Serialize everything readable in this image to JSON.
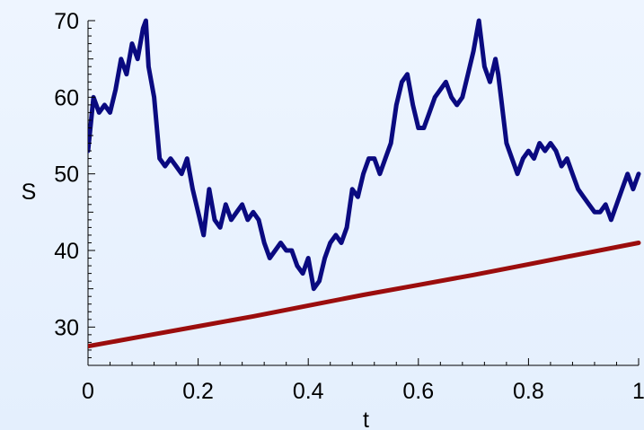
{
  "chart_data": {
    "type": "line",
    "title": "",
    "xlabel": "t",
    "ylabel": "S",
    "xlim": [
      0,
      1
    ],
    "ylim": [
      25,
      70
    ],
    "x_ticks": [
      0,
      0.2,
      0.4,
      0.6,
      0.8,
      1
    ],
    "x_tick_labels": [
      "0",
      "0.2",
      "0.4",
      "0.6",
      "0.8",
      "1"
    ],
    "y_ticks": [
      30,
      40,
      50,
      60,
      70
    ],
    "y_tick_labels": [
      "30",
      "40",
      "50",
      "60",
      "70"
    ],
    "grid": false,
    "legend": "none",
    "series": [
      {
        "color": "#0a0a80",
        "x": [
          0.0,
          0.01,
          0.02,
          0.03,
          0.04,
          0.05,
          0.06,
          0.07,
          0.08,
          0.09,
          0.1,
          0.105,
          0.11,
          0.12,
          0.13,
          0.14,
          0.15,
          0.16,
          0.17,
          0.18,
          0.19,
          0.2,
          0.21,
          0.22,
          0.23,
          0.24,
          0.25,
          0.26,
          0.27,
          0.28,
          0.29,
          0.3,
          0.31,
          0.32,
          0.33,
          0.34,
          0.35,
          0.36,
          0.37,
          0.38,
          0.39,
          0.4,
          0.41,
          0.42,
          0.43,
          0.44,
          0.45,
          0.46,
          0.47,
          0.48,
          0.49,
          0.5,
          0.51,
          0.52,
          0.53,
          0.54,
          0.55,
          0.56,
          0.57,
          0.58,
          0.59,
          0.6,
          0.61,
          0.62,
          0.63,
          0.64,
          0.65,
          0.66,
          0.67,
          0.68,
          0.69,
          0.7,
          0.71,
          0.72,
          0.73,
          0.74,
          0.745,
          0.75,
          0.76,
          0.77,
          0.78,
          0.79,
          0.8,
          0.81,
          0.82,
          0.83,
          0.84,
          0.85,
          0.86,
          0.87,
          0.88,
          0.89,
          0.9,
          0.91,
          0.92,
          0.93,
          0.94,
          0.95,
          0.96,
          0.97,
          0.98,
          0.99,
          1.0
        ],
        "y": [
          53,
          60,
          58,
          59,
          58,
          61,
          65,
          63,
          67,
          65,
          69,
          70,
          64,
          60,
          52,
          51,
          52,
          51,
          50,
          52,
          48,
          45,
          42,
          48,
          44,
          43,
          46,
          44,
          45,
          46,
          44,
          45,
          44,
          41,
          39,
          40,
          41,
          40,
          40,
          38,
          37,
          39,
          35,
          36,
          39,
          41,
          42,
          41,
          43,
          48,
          47,
          50,
          52,
          52,
          50,
          52,
          54,
          59,
          62,
          63,
          59,
          56,
          56,
          58,
          60,
          61,
          62,
          60,
          59,
          60,
          63,
          66,
          70,
          64,
          62,
          65,
          63,
          60,
          54,
          52,
          50,
          52,
          53,
          52,
          54,
          53,
          54,
          53,
          51,
          52,
          50,
          48,
          47,
          46,
          45,
          45,
          46,
          44,
          46,
          48,
          50,
          48,
          50
        ]
      },
      {
        "color": "#9b0d0d",
        "x": [
          0.0,
          0.1,
          0.2,
          0.3,
          0.4,
          0.5,
          0.6,
          0.7,
          0.8,
          0.9,
          1.0
        ],
        "y": [
          27.5,
          28.8,
          30.1,
          31.4,
          32.8,
          34.2,
          35.5,
          36.8,
          38.2,
          39.6,
          41.0
        ]
      }
    ]
  }
}
